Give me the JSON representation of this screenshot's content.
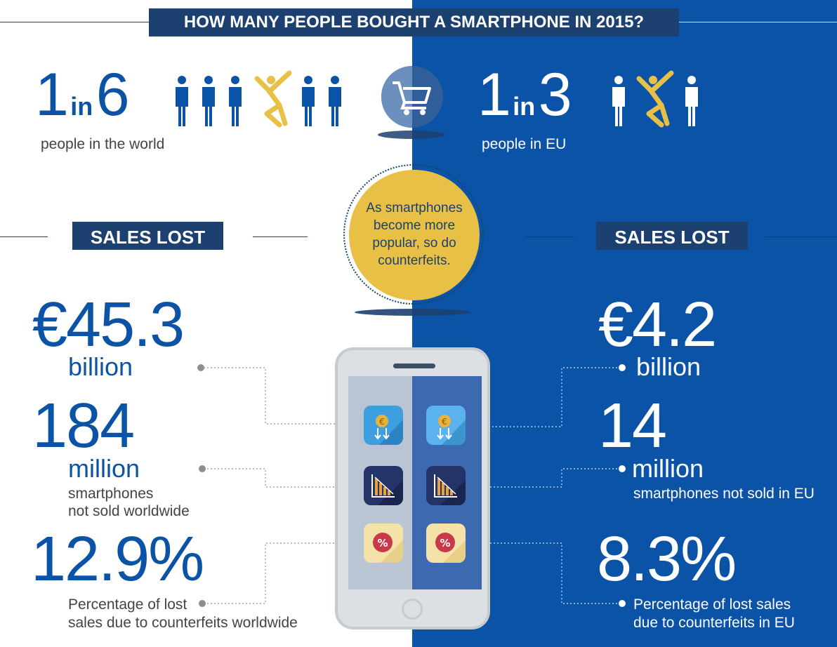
{
  "title": "HOW MANY PEOPLE BOUGHT A SMARTPHONE IN 2015?",
  "world": {
    "ratio_num": "1",
    "ratio_in": "in",
    "ratio_den": "6",
    "label": "people in the world"
  },
  "eu": {
    "ratio_num": "1",
    "ratio_in": "in",
    "ratio_den": "3",
    "label": "people in EU"
  },
  "center_bubble": "As smartphones become more popular, so do counterfeits.",
  "left_panel": {
    "banner": "SALES LOST",
    "value_amount": "€45.3",
    "value_amount_unit": "billion",
    "value_units": "184",
    "value_units_unit": "million",
    "value_units_desc_1": "smartphones",
    "value_units_desc_2": "not sold worldwide",
    "value_pct": "12.9%",
    "value_pct_desc_1": "Percentage of lost",
    "value_pct_desc_2": "sales due to counterfeits worldwide"
  },
  "right_panel": {
    "banner": "SALES LOST",
    "value_amount": "€4.2",
    "value_amount_unit": "billion",
    "value_units": "14",
    "value_units_unit": "million",
    "value_units_desc": "smartphones not sold in EU",
    "value_pct": "8.3%",
    "value_pct_desc_1": "Percentage of lost sales",
    "value_pct_desc_2": "due to counterfeits in EU"
  },
  "colors": {
    "blue": "#0b53a6",
    "navy": "#1c4070",
    "gold": "#e9c046",
    "white": "#ffffff"
  },
  "icons": [
    "person-icon",
    "jumping-person-icon",
    "shopping-cart-icon",
    "euro-coin-down-icon",
    "declining-chart-icon",
    "percent-badge-icon"
  ]
}
